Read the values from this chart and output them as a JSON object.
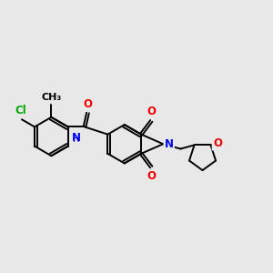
{
  "bg": "#e8e8e8",
  "bond_color": "#000000",
  "N_color": "#0000ee",
  "O_color": "#ee0000",
  "Cl_color": "#00aa00",
  "lw": 1.4,
  "dbo": 0.055,
  "fs": 8.5,
  "xlim": [
    0,
    10
  ],
  "ylim": [
    1,
    9
  ]
}
